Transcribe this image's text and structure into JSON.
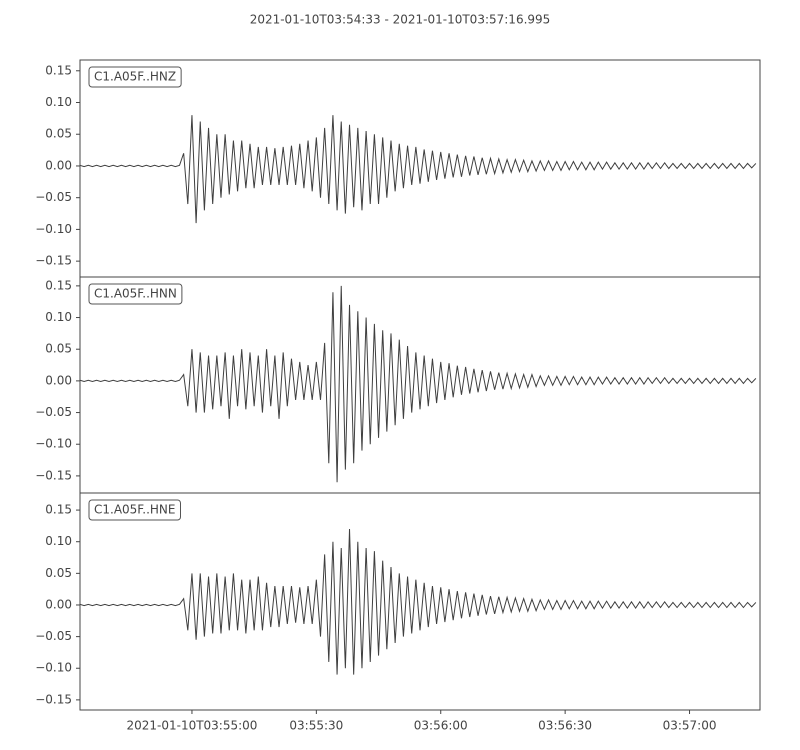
{
  "title": "2021-01-10T03:54:33  -  2021-01-10T03:57:16.995",
  "chart_data": [
    {
      "type": "line",
      "x": [
        0,
        1,
        2,
        3,
        4,
        5,
        6,
        7,
        8,
        9,
        10,
        11,
        12,
        13,
        14,
        15,
        16,
        17,
        18,
        19,
        20,
        21,
        22,
        23,
        24,
        25,
        26,
        27,
        28,
        29,
        30,
        31,
        32,
        33,
        34,
        35,
        36,
        37,
        38,
        39,
        40,
        41,
        42,
        43,
        44,
        45,
        46,
        47,
        48,
        49,
        50,
        51,
        52,
        53,
        54,
        55,
        56,
        57,
        58,
        59,
        60,
        61,
        62,
        63,
        64,
        65,
        66,
        67,
        68,
        69,
        70,
        71,
        72,
        73,
        74,
        75,
        76,
        77,
        78,
        79,
        80,
        81,
        82,
        83,
        84,
        85,
        86,
        87,
        88,
        89,
        90,
        91,
        92,
        93,
        94,
        95,
        96,
        97,
        98,
        99,
        100,
        101,
        102,
        103,
        104,
        105,
        106,
        107,
        108,
        109,
        110,
        111,
        112,
        113,
        114,
        115,
        116,
        117,
        118,
        119,
        120,
        121,
        122,
        123,
        124,
        125,
        126,
        127,
        128,
        129,
        130,
        131,
        132,
        133,
        134,
        135,
        136,
        137,
        138,
        139,
        140,
        141,
        142,
        143,
        144,
        145,
        146,
        147,
        148,
        149,
        150,
        151,
        152,
        153,
        154,
        155,
        156,
        157,
        158,
        159,
        160,
        161,
        162,
        163
      ],
      "xlim": [
        0,
        163.995
      ],
      "ylim": [
        -0.175,
        0.167
      ],
      "yticks": [
        0.15,
        {
          "value": 0.1,
          "label": "0.10"
        },
        {
          "value": 0.05,
          "label": "0.05"
        },
        {
          "value": 0,
          "label": "0.00"
        },
        {
          "value": -0.05,
          "label": "−0.05"
        },
        {
          "value": -0.1,
          "label": "−0.10"
        },
        {
          "value": -0.15,
          "label": "−0.15"
        }
      ],
      "series": [
        {
          "name": "C1.A05F..HNZ",
          "color": "#3f3f3f",
          "values": [
            0.001,
            -0.001,
            0.001,
            -0.001,
            0.001,
            -0.001,
            0.001,
            -0.001,
            0.001,
            -0.001,
            0.001,
            -0.001,
            0.001,
            -0.001,
            0.001,
            -0.001,
            0.001,
            -0.001,
            0.001,
            -0.001,
            0.001,
            -0.001,
            0.001,
            -0.001,
            0.001,
            0.02,
            -0.06,
            0.08,
            -0.09,
            0.07,
            -0.07,
            0.06,
            -0.06,
            0.05,
            -0.05,
            0.05,
            -0.045,
            0.04,
            -0.04,
            0.04,
            -0.035,
            0.035,
            -0.035,
            0.03,
            -0.03,
            0.03,
            -0.03,
            0.028,
            -0.03,
            0.03,
            -0.03,
            0.032,
            -0.03,
            0.035,
            -0.035,
            0.04,
            -0.04,
            0.045,
            -0.05,
            0.06,
            -0.06,
            0.08,
            -0.07,
            0.07,
            -0.075,
            0.065,
            -0.065,
            0.06,
            -0.07,
            0.055,
            -0.06,
            0.05,
            -0.06,
            0.045,
            -0.05,
            0.04,
            -0.04,
            0.035,
            -0.035,
            0.032,
            -0.03,
            0.03,
            -0.028,
            0.026,
            -0.025,
            0.024,
            -0.022,
            0.022,
            -0.02,
            0.02,
            -0.018,
            0.018,
            -0.017,
            0.016,
            -0.015,
            0.015,
            -0.014,
            0.013,
            -0.013,
            0.012,
            -0.012,
            0.011,
            -0.011,
            0.01,
            -0.01,
            0.01,
            -0.009,
            0.009,
            -0.009,
            0.008,
            -0.008,
            0.008,
            -0.007,
            0.008,
            -0.007,
            0.007,
            -0.007,
            0.007,
            -0.006,
            0.007,
            -0.006,
            0.006,
            -0.006,
            0.006,
            -0.006,
            0.006,
            -0.005,
            0.006,
            -0.005,
            0.005,
            -0.005,
            0.005,
            -0.005,
            0.005,
            -0.005,
            0.005,
            -0.005,
            0.005,
            -0.004,
            0.005,
            -0.004,
            0.005,
            -0.004,
            0.004,
            -0.004,
            0.004,
            -0.004,
            0.004,
            -0.004,
            0.004,
            -0.004,
            0.004,
            -0.004,
            0.004,
            -0.004,
            0.004,
            -0.004,
            0.004,
            -0.004,
            0.004,
            -0.004,
            0.004,
            -0.003,
            0.004
          ]
        }
      ]
    },
    {
      "type": "line",
      "x": [
        0,
        1,
        2,
        3,
        4,
        5,
        6,
        7,
        8,
        9,
        10,
        11,
        12,
        13,
        14,
        15,
        16,
        17,
        18,
        19,
        20,
        21,
        22,
        23,
        24,
        25,
        26,
        27,
        28,
        29,
        30,
        31,
        32,
        33,
        34,
        35,
        36,
        37,
        38,
        39,
        40,
        41,
        42,
        43,
        44,
        45,
        46,
        47,
        48,
        49,
        50,
        51,
        52,
        53,
        54,
        55,
        56,
        57,
        58,
        59,
        60,
        61,
        62,
        63,
        64,
        65,
        66,
        67,
        68,
        69,
        70,
        71,
        72,
        73,
        74,
        75,
        76,
        77,
        78,
        79,
        80,
        81,
        82,
        83,
        84,
        85,
        86,
        87,
        88,
        89,
        90,
        91,
        92,
        93,
        94,
        95,
        96,
        97,
        98,
        99,
        100,
        101,
        102,
        103,
        104,
        105,
        106,
        107,
        108,
        109,
        110,
        111,
        112,
        113,
        114,
        115,
        116,
        117,
        118,
        119,
        120,
        121,
        122,
        123,
        124,
        125,
        126,
        127,
        128,
        129,
        130,
        131,
        132,
        133,
        134,
        135,
        136,
        137,
        138,
        139,
        140,
        141,
        142,
        143,
        144,
        145,
        146,
        147,
        148,
        149,
        150,
        151,
        152,
        153,
        154,
        155,
        156,
        157,
        158,
        159,
        160,
        161,
        162,
        163
      ],
      "xlim": [
        0,
        163.995
      ],
      "ylim": [
        -0.177,
        0.164
      ],
      "yticks": [
        0.15,
        {
          "value": 0.1,
          "label": "0.10"
        },
        {
          "value": 0.05,
          "label": "0.05"
        },
        {
          "value": 0,
          "label": "0.00"
        },
        {
          "value": -0.05,
          "label": "−0.05"
        },
        {
          "value": -0.1,
          "label": "−0.10"
        },
        {
          "value": -0.15,
          "label": "−0.15"
        }
      ],
      "series": [
        {
          "name": "C1.A05F..HNN",
          "color": "#3f3f3f",
          "values": [
            0.001,
            -0.001,
            0.001,
            -0.001,
            0.001,
            -0.001,
            0.001,
            -0.001,
            0.001,
            -0.001,
            0.001,
            -0.001,
            0.001,
            -0.001,
            0.001,
            -0.001,
            0.001,
            -0.001,
            0.001,
            -0.001,
            0.001,
            -0.001,
            0.001,
            -0.001,
            0.001,
            0.01,
            -0.04,
            0.05,
            -0.05,
            0.045,
            -0.05,
            0.04,
            -0.045,
            0.04,
            -0.04,
            0.045,
            -0.06,
            0.04,
            -0.04,
            0.05,
            -0.045,
            0.045,
            -0.04,
            0.04,
            -0.05,
            0.05,
            -0.04,
            0.04,
            -0.06,
            0.045,
            -0.04,
            0.035,
            -0.03,
            0.03,
            -0.03,
            0.025,
            -0.03,
            0.03,
            -0.03,
            0.06,
            -0.13,
            0.14,
            -0.16,
            0.15,
            -0.14,
            0.12,
            -0.13,
            0.11,
            -0.11,
            0.1,
            -0.1,
            0.09,
            -0.09,
            0.08,
            -0.08,
            0.075,
            -0.07,
            0.065,
            -0.06,
            0.055,
            -0.05,
            0.045,
            -0.045,
            0.04,
            -0.04,
            0.035,
            -0.035,
            0.03,
            -0.03,
            0.028,
            -0.026,
            0.024,
            -0.022,
            0.022,
            -0.02,
            0.019,
            -0.018,
            0.017,
            -0.016,
            0.015,
            -0.014,
            0.013,
            -0.013,
            0.012,
            -0.012,
            0.011,
            -0.011,
            0.01,
            -0.01,
            0.01,
            -0.009,
            0.008,
            -0.007,
            0.008,
            -0.007,
            0.007,
            -0.007,
            0.007,
            -0.006,
            0.007,
            -0.006,
            0.006,
            -0.006,
            0.006,
            -0.006,
            0.006,
            -0.005,
            0.006,
            -0.005,
            0.005,
            -0.005,
            0.005,
            -0.005,
            0.005,
            -0.005,
            0.005,
            -0.005,
            0.005,
            -0.004,
            0.005,
            -0.004,
            0.005,
            -0.004,
            0.004,
            -0.004,
            0.004,
            -0.004,
            0.004,
            -0.004,
            0.004,
            -0.004,
            0.004,
            -0.004,
            0.004,
            -0.004,
            0.004,
            -0.004,
            0.004,
            -0.004,
            0.004,
            -0.004,
            0.004,
            -0.003,
            0.004
          ]
        }
      ]
    },
    {
      "type": "line",
      "x": [
        0,
        1,
        2,
        3,
        4,
        5,
        6,
        7,
        8,
        9,
        10,
        11,
        12,
        13,
        14,
        15,
        16,
        17,
        18,
        19,
        20,
        21,
        22,
        23,
        24,
        25,
        26,
        27,
        28,
        29,
        30,
        31,
        32,
        33,
        34,
        35,
        36,
        37,
        38,
        39,
        40,
        41,
        42,
        43,
        44,
        45,
        46,
        47,
        48,
        49,
        50,
        51,
        52,
        53,
        54,
        55,
        56,
        57,
        58,
        59,
        60,
        61,
        62,
        63,
        64,
        65,
        66,
        67,
        68,
        69,
        70,
        71,
        72,
        73,
        74,
        75,
        76,
        77,
        78,
        79,
        80,
        81,
        82,
        83,
        84,
        85,
        86,
        87,
        88,
        89,
        90,
        91,
        92,
        93,
        94,
        95,
        96,
        97,
        98,
        99,
        100,
        101,
        102,
        103,
        104,
        105,
        106,
        107,
        108,
        109,
        110,
        111,
        112,
        113,
        114,
        115,
        116,
        117,
        118,
        119,
        120,
        121,
        122,
        123,
        124,
        125,
        126,
        127,
        128,
        129,
        130,
        131,
        132,
        133,
        134,
        135,
        136,
        137,
        138,
        139,
        140,
        141,
        142,
        143,
        144,
        145,
        146,
        147,
        148,
        149,
        150,
        151,
        152,
        153,
        154,
        155,
        156,
        157,
        158,
        159,
        160,
        161,
        162,
        163
      ],
      "xlim": [
        0,
        163.995
      ],
      "ylim": [
        -0.166,
        0.177
      ],
      "xticks": [
        {
          "value": 27,
          "label": "2021-01-10T03:55:00"
        },
        {
          "value": 57,
          "label": "03:55:30"
        },
        {
          "value": 87,
          "label": "03:56:00"
        },
        {
          "value": 117,
          "label": "03:56:30"
        },
        {
          "value": 147,
          "label": "03:57:00"
        }
      ],
      "yticks": [
        0.15,
        {
          "value": 0.1,
          "label": "0.10"
        },
        {
          "value": 0.05,
          "label": "0.05"
        },
        {
          "value": 0,
          "label": "0.00"
        },
        {
          "value": -0.05,
          "label": "−0.05"
        },
        {
          "value": -0.1,
          "label": "−0.10"
        },
        {
          "value": -0.15,
          "label": "−0.15"
        }
      ],
      "series": [
        {
          "name": "C1.A05F..HNE",
          "color": "#3f3f3f",
          "values": [
            0.001,
            -0.001,
            0.001,
            -0.001,
            0.001,
            -0.001,
            0.001,
            -0.001,
            0.001,
            -0.001,
            0.001,
            -0.001,
            0.001,
            -0.001,
            0.001,
            -0.001,
            0.001,
            -0.001,
            0.001,
            -0.001,
            0.001,
            -0.001,
            0.001,
            -0.001,
            0.001,
            0.01,
            -0.04,
            0.05,
            -0.055,
            0.05,
            -0.05,
            0.045,
            -0.045,
            0.05,
            -0.045,
            0.045,
            -0.04,
            0.05,
            -0.04,
            0.04,
            -0.045,
            0.04,
            -0.04,
            0.045,
            -0.04,
            0.035,
            -0.035,
            0.03,
            -0.035,
            0.03,
            -0.03,
            0.03,
            -0.028,
            0.028,
            -0.03,
            0.03,
            -0.03,
            0.04,
            -0.05,
            0.08,
            -0.09,
            0.1,
            -0.11,
            0.09,
            -0.1,
            0.12,
            -0.11,
            0.1,
            -0.1,
            0.09,
            -0.09,
            0.085,
            -0.08,
            0.07,
            -0.07,
            0.06,
            -0.06,
            0.05,
            -0.05,
            0.045,
            -0.045,
            0.04,
            -0.04,
            0.035,
            -0.035,
            0.03,
            -0.03,
            0.028,
            -0.027,
            0.025,
            -0.024,
            0.022,
            -0.021,
            0.02,
            -0.019,
            0.018,
            -0.017,
            0.016,
            -0.015,
            0.014,
            -0.014,
            0.013,
            -0.012,
            0.012,
            -0.011,
            0.011,
            -0.01,
            0.01,
            -0.01,
            0.009,
            -0.009,
            0.008,
            -0.007,
            0.008,
            -0.007,
            0.007,
            -0.007,
            0.007,
            -0.006,
            0.007,
            -0.006,
            0.006,
            -0.006,
            0.006,
            -0.006,
            0.006,
            -0.005,
            0.006,
            -0.005,
            0.005,
            -0.005,
            0.005,
            -0.005,
            0.005,
            -0.005,
            0.005,
            -0.005,
            0.005,
            -0.004,
            0.005,
            -0.004,
            0.005,
            -0.004,
            0.004,
            -0.004,
            0.004,
            -0.004,
            0.004,
            -0.004,
            0.004,
            -0.004,
            0.004,
            -0.004,
            0.004,
            -0.004,
            0.004,
            -0.004,
            0.004,
            -0.004,
            0.004,
            -0.004,
            0.004,
            -0.003,
            0.004
          ]
        }
      ]
    }
  ]
}
